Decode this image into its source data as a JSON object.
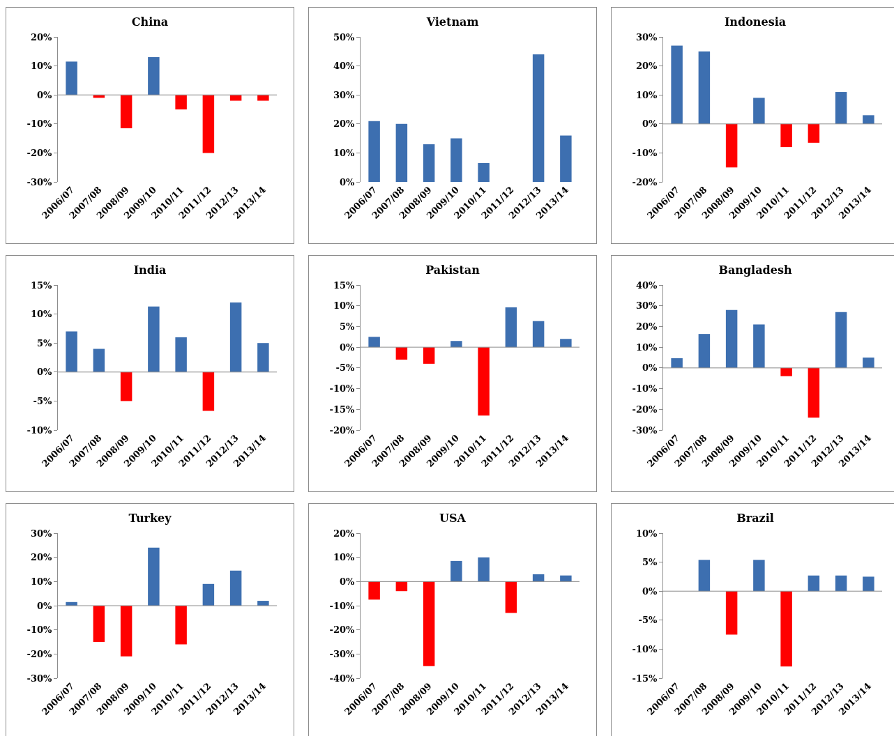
{
  "chart_data": [
    {
      "type": "bar",
      "title": "China",
      "categories": [
        "2006/07",
        "2007/08",
        "2008/09",
        "2009/10",
        "2010/11",
        "2011/12",
        "2012/13",
        "2013/14"
      ],
      "values": [
        11.5,
        -1,
        -11.5,
        13,
        -5,
        -20,
        -2,
        -2
      ],
      "colors": [
        "#3d6fb0",
        "#ff0000",
        "#ff0000",
        "#3d6fb0",
        "#ff0000",
        "#ff0000",
        "#ff0000",
        "#ff0000"
      ],
      "ylim": [
        -30,
        20
      ],
      "yticks": [
        {
          "value": -30,
          "label": "-30%"
        },
        {
          "value": -20,
          "label": "-20%"
        },
        {
          "value": -10,
          "label": "-10%"
        },
        {
          "value": 0,
          "label": "0%"
        },
        {
          "value": 10,
          "label": "10%"
        },
        {
          "value": 20,
          "label": "20%"
        }
      ],
      "grid": false,
      "ref_lines": [
        {
          "axis": "y",
          "value": 0,
          "color": "#8c8c8c"
        }
      ]
    },
    {
      "type": "bar",
      "title": "Vietnam",
      "categories": [
        "2006/07",
        "2007/08",
        "2008/09",
        "2009/10",
        "2010/11",
        "2011/12",
        "2012/13",
        "2013/14"
      ],
      "values": [
        21,
        20,
        13,
        15,
        6.5,
        0,
        44,
        16
      ],
      "colors": [
        "#3d6fb0",
        "#3d6fb0",
        "#3d6fb0",
        "#3d6fb0",
        "#3d6fb0",
        "#3d6fb0",
        "#3d6fb0",
        "#3d6fb0"
      ],
      "ylim": [
        0,
        50
      ],
      "yticks": [
        {
          "value": 0,
          "label": "0%"
        },
        {
          "value": 10,
          "label": "10%"
        },
        {
          "value": 20,
          "label": "20%"
        },
        {
          "value": 30,
          "label": "30%"
        },
        {
          "value": 40,
          "label": "40%"
        },
        {
          "value": 50,
          "label": "50%"
        }
      ],
      "grid": false
    },
    {
      "type": "bar",
      "title": "Indonesia",
      "categories": [
        "2006/07",
        "2007/08",
        "2008/09",
        "2009/10",
        "2010/11",
        "2011/12",
        "2012/13",
        "2013/14"
      ],
      "values": [
        27,
        25,
        -15,
        9,
        -8,
        -6.5,
        11,
        3
      ],
      "colors": [
        "#3d6fb0",
        "#3d6fb0",
        "#ff0000",
        "#3d6fb0",
        "#ff0000",
        "#ff0000",
        "#3d6fb0",
        "#3d6fb0"
      ],
      "ylim": [
        -20,
        30
      ],
      "yticks": [
        {
          "value": -20,
          "label": "-20%"
        },
        {
          "value": -10,
          "label": "-10%"
        },
        {
          "value": 0,
          "label": "0%"
        },
        {
          "value": 10,
          "label": "10%"
        },
        {
          "value": 20,
          "label": "20%"
        },
        {
          "value": 30,
          "label": "30%"
        }
      ],
      "grid": false,
      "ref_lines": [
        {
          "axis": "y",
          "value": 0,
          "color": "#8c8c8c"
        }
      ]
    },
    {
      "type": "bar",
      "title": "India",
      "categories": [
        "2006/07",
        "2007/08",
        "2008/09",
        "2009/10",
        "2010/11",
        "2011/12",
        "2012/13",
        "2013/14"
      ],
      "values": [
        7,
        4,
        -5,
        11.3,
        6,
        -6.7,
        12,
        5
      ],
      "colors": [
        "#3d6fb0",
        "#3d6fb0",
        "#ff0000",
        "#3d6fb0",
        "#3d6fb0",
        "#ff0000",
        "#3d6fb0",
        "#3d6fb0"
      ],
      "ylim": [
        -10,
        15
      ],
      "yticks": [
        {
          "value": -10,
          "label": "-10%"
        },
        {
          "value": -5,
          "label": "-5%"
        },
        {
          "value": 0,
          "label": "0%"
        },
        {
          "value": 5,
          "label": "5%"
        },
        {
          "value": 10,
          "label": "10%"
        },
        {
          "value": 15,
          "label": "15%"
        }
      ],
      "grid": false,
      "ref_lines": [
        {
          "axis": "y",
          "value": 0,
          "color": "#8c8c8c"
        }
      ]
    },
    {
      "type": "bar",
      "title": "Pakistan",
      "categories": [
        "2006/07",
        "2007/08",
        "2008/09",
        "2009/10",
        "2010/11",
        "2011/12",
        "2012/13",
        "2013/14"
      ],
      "values": [
        2.5,
        -3,
        -4,
        1.5,
        -16.5,
        9.6,
        6.3,
        2
      ],
      "colors": [
        "#3d6fb0",
        "#ff0000",
        "#ff0000",
        "#3d6fb0",
        "#ff0000",
        "#3d6fb0",
        "#3d6fb0",
        "#3d6fb0"
      ],
      "ylim": [
        -20,
        15
      ],
      "yticks": [
        {
          "value": -20,
          "label": "-20%"
        },
        {
          "value": -15,
          "label": "-15%"
        },
        {
          "value": -10,
          "label": "-10%"
        },
        {
          "value": -5,
          "label": "-5%"
        },
        {
          "value": 0,
          "label": "0%"
        },
        {
          "value": 5,
          "label": "5%"
        },
        {
          "value": 10,
          "label": "10%"
        },
        {
          "value": 15,
          "label": "15%"
        }
      ],
      "grid": false,
      "ref_lines": [
        {
          "axis": "y",
          "value": 0,
          "color": "#8c8c8c"
        }
      ]
    },
    {
      "type": "bar",
      "title": "Bangladesh",
      "categories": [
        "2006/07",
        "2007/08",
        "2008/09",
        "2009/10",
        "2010/11",
        "2011/12",
        "2012/13",
        "2013/14"
      ],
      "values": [
        4.7,
        16.4,
        28,
        21,
        -4,
        -24,
        27,
        5
      ],
      "colors": [
        "#3d6fb0",
        "#3d6fb0",
        "#3d6fb0",
        "#3d6fb0",
        "#ff0000",
        "#ff0000",
        "#3d6fb0",
        "#3d6fb0"
      ],
      "ylim": [
        -30,
        40
      ],
      "yticks": [
        {
          "value": -30,
          "label": "-30%"
        },
        {
          "value": -20,
          "label": "-20%"
        },
        {
          "value": -10,
          "label": "-10%"
        },
        {
          "value": 0,
          "label": "0%"
        },
        {
          "value": 10,
          "label": "10%"
        },
        {
          "value": 20,
          "label": "20%"
        },
        {
          "value": 30,
          "label": "30%"
        },
        {
          "value": 40,
          "label": "40%"
        }
      ],
      "grid": false,
      "ref_lines": [
        {
          "axis": "y",
          "value": 0,
          "color": "#8c8c8c"
        }
      ]
    },
    {
      "type": "bar",
      "title": "Turkey",
      "categories": [
        "2006/07",
        "2007/08",
        "2008/09",
        "2009/10",
        "2010/11",
        "2011/12",
        "2012/13",
        "2013/14"
      ],
      "values": [
        1.5,
        -15,
        -21,
        24,
        -16,
        9,
        14.5,
        2
      ],
      "colors": [
        "#3d6fb0",
        "#ff0000",
        "#ff0000",
        "#3d6fb0",
        "#ff0000",
        "#3d6fb0",
        "#3d6fb0",
        "#3d6fb0"
      ],
      "ylim": [
        -30,
        30
      ],
      "yticks": [
        {
          "value": -30,
          "label": "-30%"
        },
        {
          "value": -20,
          "label": "-20%"
        },
        {
          "value": -10,
          "label": "-10%"
        },
        {
          "value": 0,
          "label": "0%"
        },
        {
          "value": 10,
          "label": "10%"
        },
        {
          "value": 20,
          "label": "20%"
        },
        {
          "value": 30,
          "label": "30%"
        }
      ],
      "grid": false,
      "ref_lines": [
        {
          "axis": "y",
          "value": 0,
          "color": "#8c8c8c"
        }
      ]
    },
    {
      "type": "bar",
      "title": "USA",
      "categories": [
        "2006/07",
        "2007/08",
        "2008/09",
        "2009/10",
        "2010/11",
        "2011/12",
        "2012/13",
        "2013/14"
      ],
      "values": [
        -7.5,
        -4,
        -35,
        8.5,
        10,
        -13,
        3,
        2.5
      ],
      "colors": [
        "#ff0000",
        "#ff0000",
        "#ff0000",
        "#3d6fb0",
        "#3d6fb0",
        "#ff0000",
        "#3d6fb0",
        "#3d6fb0"
      ],
      "ylim": [
        -40,
        20
      ],
      "yticks": [
        {
          "value": -40,
          "label": "-40%"
        },
        {
          "value": -30,
          "label": "-30%"
        },
        {
          "value": -20,
          "label": "-20%"
        },
        {
          "value": -10,
          "label": "-10%"
        },
        {
          "value": 0,
          "label": "0%"
        },
        {
          "value": 10,
          "label": "10%"
        },
        {
          "value": 20,
          "label": "20%"
        }
      ],
      "grid": false,
      "ref_lines": [
        {
          "axis": "y",
          "value": 0,
          "color": "#8c8c8c"
        }
      ]
    },
    {
      "type": "bar",
      "title": "Brazil",
      "categories": [
        "2006/07",
        "2007/08",
        "2008/09",
        "2009/10",
        "2010/11",
        "2011/12",
        "2012/13",
        "2013/14"
      ],
      "values": [
        0,
        5.4,
        -7.5,
        5.4,
        -13,
        2.7,
        2.7,
        2.5
      ],
      "colors": [
        "#3d6fb0",
        "#3d6fb0",
        "#ff0000",
        "#3d6fb0",
        "#ff0000",
        "#3d6fb0",
        "#3d6fb0",
        "#3d6fb0"
      ],
      "ylim": [
        -15,
        10
      ],
      "yticks": [
        {
          "value": -15,
          "label": "-15%"
        },
        {
          "value": -10,
          "label": "-10%"
        },
        {
          "value": -5,
          "label": "-5%"
        },
        {
          "value": 0,
          "label": "0%"
        },
        {
          "value": 5,
          "label": "5%"
        },
        {
          "value": 10,
          "label": "10%"
        }
      ],
      "grid": false,
      "ref_lines": [
        {
          "axis": "y",
          "value": 0,
          "color": "#8c8c8c"
        }
      ]
    }
  ]
}
